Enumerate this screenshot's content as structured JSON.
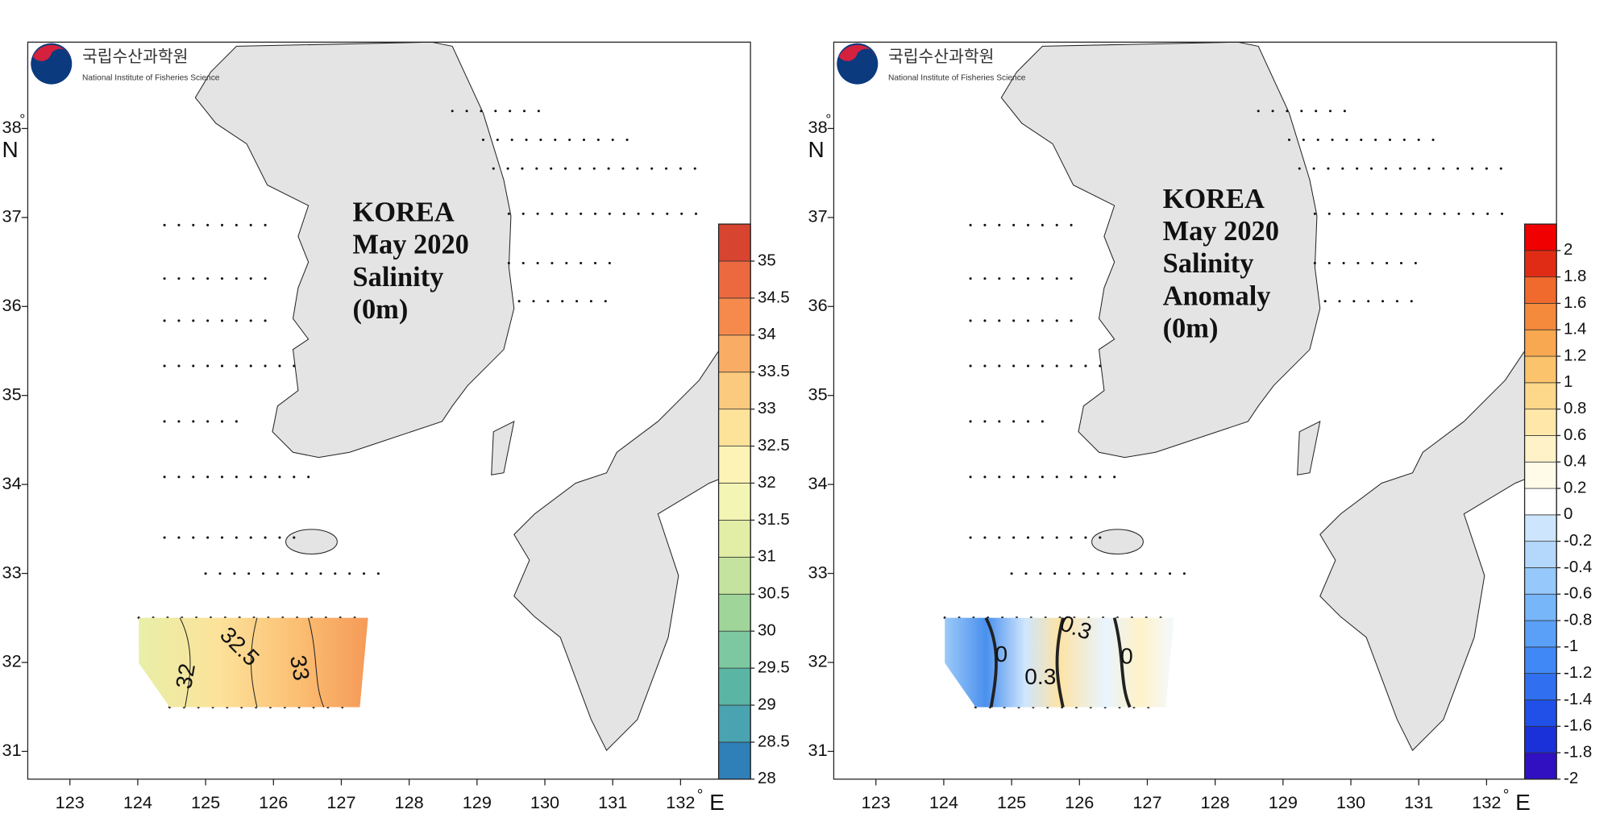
{
  "panels": [
    {
      "logo": {
        "korean": "국립수산과학원",
        "english": "National Institute of Fisheries Science"
      },
      "title_lines": [
        "KOREA",
        "May 2020",
        "Salinity",
        "(0m)"
      ],
      "x_ticks": [
        123,
        124,
        125,
        126,
        127,
        128,
        129,
        130,
        131,
        132
      ],
      "y_ticks": [
        31,
        32,
        33,
        34,
        35,
        36,
        37,
        38
      ],
      "degree": "°",
      "x_label": "E",
      "y_label": "N",
      "colorbar": {
        "lim": [
          28,
          35.5
        ],
        "ticks": [
          28,
          28.5,
          29,
          29.5,
          30,
          30.5,
          31,
          31.5,
          32,
          32.5,
          33,
          33.5,
          34,
          34.5,
          35
        ],
        "colors": [
          "#2f7fb8",
          "#4aa3b0",
          "#5bb5a4",
          "#7dc8a0",
          "#a0d59a",
          "#c4e39e",
          "#e2eea6",
          "#f3f5b4",
          "#fdf3b6",
          "#fde29a",
          "#fcca7e",
          "#f9ad64",
          "#f58a4c",
          "#ec6940",
          "#d74530"
        ]
      },
      "contour_labels": [
        "32.5",
        "33",
        "32"
      ]
    },
    {
      "logo": {
        "korean": "국립수산과학원",
        "english": "National Institute of Fisheries Science"
      },
      "title_lines": [
        "KOREA",
        "May 2020",
        "Salinity",
        "Anomaly",
        "(0m)"
      ],
      "x_ticks": [
        123,
        124,
        125,
        126,
        127,
        128,
        129,
        130,
        131,
        132
      ],
      "y_ticks": [
        31,
        32,
        33,
        34,
        35,
        36,
        37,
        38
      ],
      "degree": "°",
      "x_label": "E",
      "y_label": "N",
      "colorbar": {
        "lim": [
          -2,
          2.2
        ],
        "ticks": [
          -2,
          -1.8,
          -1.6,
          -1.4,
          -1.2,
          -1,
          -0.8,
          -0.6,
          -0.4,
          -0.2,
          0,
          0.2,
          0.4,
          0.6,
          0.8,
          1,
          1.2,
          1.4,
          1.6,
          1.8,
          2
        ],
        "colors": [
          "#3010c0",
          "#1a30d8",
          "#2050e8",
          "#3070f0",
          "#4088f5",
          "#5aa0f8",
          "#78b6fa",
          "#96c8fb",
          "#b4d8fc",
          "#cde6fd",
          "#ffffff",
          "#fffbe8",
          "#fff2c8",
          "#fee7a8",
          "#fdd78a",
          "#fbc46c",
          "#f8a850",
          "#f48a3c",
          "#ef6a2c",
          "#e02c14",
          "#f00000"
        ]
      },
      "contour_labels": [
        "0",
        "0.3",
        "0.3",
        "0"
      ]
    }
  ]
}
